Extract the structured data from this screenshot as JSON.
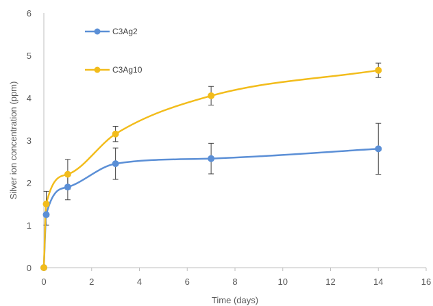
{
  "chart_data": {
    "type": "line",
    "xlabel": "Time (days)",
    "ylabel": "Silver ion concentration (ppm)",
    "xlim": [
      0,
      16
    ],
    "ylim": [
      0,
      6
    ],
    "xticks": [
      0,
      2,
      4,
      6,
      8,
      10,
      12,
      14,
      16
    ],
    "yticks": [
      0,
      1,
      2,
      3,
      4,
      5,
      6
    ],
    "grid": false,
    "legend_position": "top-left",
    "series": [
      {
        "name": "C3Ag2",
        "color": "#5B8FD6",
        "x": [
          0,
          0.1,
          1,
          3,
          7,
          14
        ],
        "y": [
          0,
          1.25,
          1.9,
          2.45,
          2.57,
          2.8
        ],
        "error": [
          0,
          0.25,
          0.3,
          0.37,
          0.36,
          0.6
        ]
      },
      {
        "name": "C3Ag10",
        "color": "#F2BC1B",
        "x": [
          0,
          0.1,
          1,
          3,
          7,
          14
        ],
        "y": [
          0,
          1.5,
          2.2,
          3.15,
          4.05,
          4.65
        ],
        "error": [
          0,
          0.3,
          0.35,
          0.18,
          0.22,
          0.17
        ]
      }
    ]
  }
}
